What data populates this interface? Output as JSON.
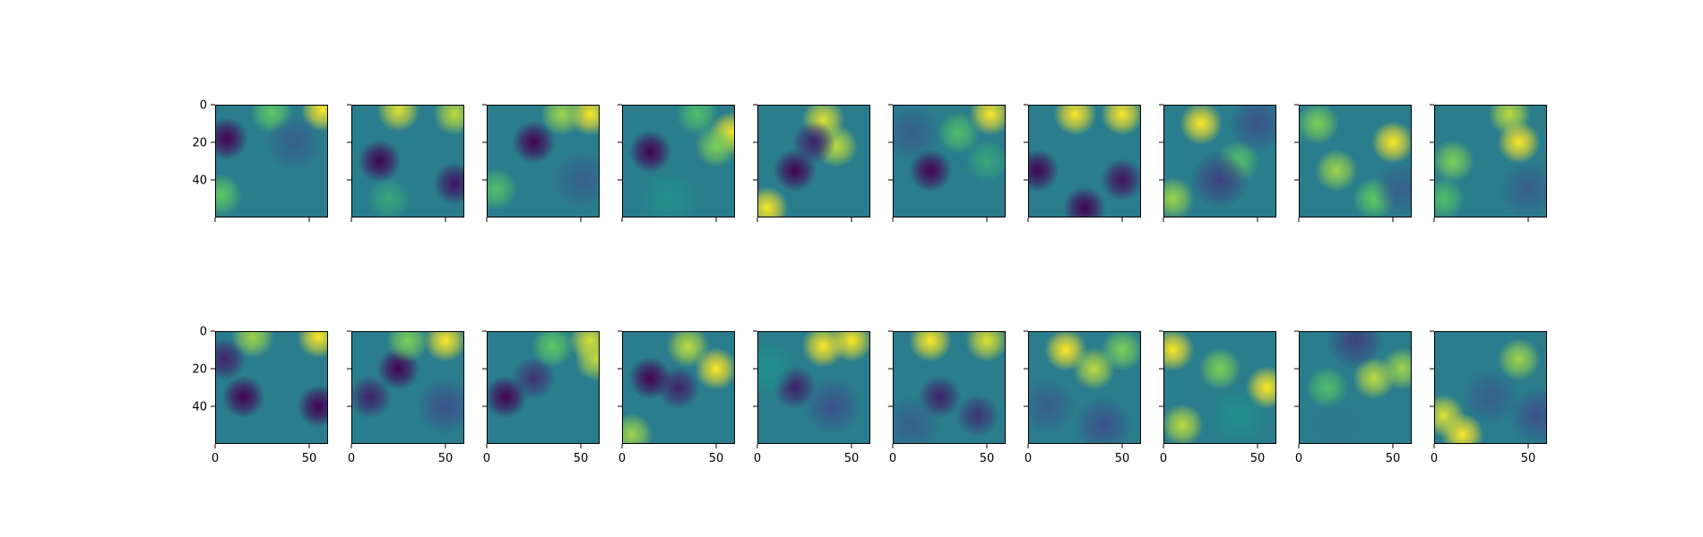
{
  "chart_data": {
    "type": "heatmap",
    "title": "",
    "colormap": "viridis",
    "colormap_stops": [
      "#440154",
      "#3b528b",
      "#21918c",
      "#5ec962",
      "#fde725"
    ],
    "grid": false,
    "legend": "none",
    "layout": {
      "rows": 2,
      "cols": 10
    },
    "shared_axes": true,
    "image_shape": [
      60,
      60
    ],
    "xlim": [
      0,
      60
    ],
    "ylim": [
      60,
      0
    ],
    "x_ticks": [
      0,
      50
    ],
    "y_ticks": [
      0,
      20,
      40
    ],
    "x_tick_labels": [
      "0",
      "50"
    ],
    "y_tick_labels": [
      "0",
      "20",
      "40"
    ],
    "panels": [
      {
        "row": 0,
        "col": 0,
        "blobs": [
          {
            "x": 6,
            "y": 18,
            "v": 0.0
          },
          {
            "x": 57,
            "y": 3,
            "v": 1.0
          },
          {
            "x": 30,
            "y": 4,
            "v": 0.75
          },
          {
            "x": 3,
            "y": 48,
            "v": 0.75
          },
          {
            "x": 42,
            "y": 20,
            "v": 0.3
          }
        ]
      },
      {
        "row": 0,
        "col": 1,
        "blobs": [
          {
            "x": 15,
            "y": 30,
            "v": 0.0
          },
          {
            "x": 55,
            "y": 42,
            "v": 0.05
          },
          {
            "x": 25,
            "y": 3,
            "v": 0.95
          },
          {
            "x": 55,
            "y": 5,
            "v": 0.9
          },
          {
            "x": 20,
            "y": 50,
            "v": 0.6
          }
        ]
      },
      {
        "row": 0,
        "col": 2,
        "blobs": [
          {
            "x": 25,
            "y": 20,
            "v": 0.0
          },
          {
            "x": 55,
            "y": 5,
            "v": 1.0
          },
          {
            "x": 40,
            "y": 5,
            "v": 0.85
          },
          {
            "x": 5,
            "y": 45,
            "v": 0.7
          },
          {
            "x": 50,
            "y": 40,
            "v": 0.3
          }
        ]
      },
      {
        "row": 0,
        "col": 3,
        "blobs": [
          {
            "x": 15,
            "y": 25,
            "v": 0.0
          },
          {
            "x": 58,
            "y": 15,
            "v": 1.0
          },
          {
            "x": 50,
            "y": 22,
            "v": 0.8
          },
          {
            "x": 40,
            "y": 5,
            "v": 0.7
          },
          {
            "x": 25,
            "y": 50,
            "v": 0.5
          }
        ]
      },
      {
        "row": 0,
        "col": 4,
        "blobs": [
          {
            "x": 5,
            "y": 55,
            "v": 1.0
          },
          {
            "x": 35,
            "y": 8,
            "v": 0.95
          },
          {
            "x": 42,
            "y": 22,
            "v": 0.9
          },
          {
            "x": 20,
            "y": 35,
            "v": 0.0
          },
          {
            "x": 30,
            "y": 20,
            "v": 0.1
          }
        ]
      },
      {
        "row": 0,
        "col": 5,
        "blobs": [
          {
            "x": 20,
            "y": 35,
            "v": 0.0
          },
          {
            "x": 52,
            "y": 5,
            "v": 1.0
          },
          {
            "x": 50,
            "y": 30,
            "v": 0.6
          },
          {
            "x": 35,
            "y": 15,
            "v": 0.7
          },
          {
            "x": 10,
            "y": 15,
            "v": 0.3
          }
        ]
      },
      {
        "row": 0,
        "col": 6,
        "blobs": [
          {
            "x": 25,
            "y": 5,
            "v": 1.0
          },
          {
            "x": 50,
            "y": 5,
            "v": 1.0
          },
          {
            "x": 5,
            "y": 35,
            "v": 0.0
          },
          {
            "x": 30,
            "y": 55,
            "v": 0.0
          },
          {
            "x": 50,
            "y": 40,
            "v": 0.05
          }
        ]
      },
      {
        "row": 0,
        "col": 7,
        "blobs": [
          {
            "x": 20,
            "y": 10,
            "v": 1.0
          },
          {
            "x": 5,
            "y": 50,
            "v": 0.85
          },
          {
            "x": 40,
            "y": 30,
            "v": 0.7
          },
          {
            "x": 30,
            "y": 40,
            "v": 0.2
          },
          {
            "x": 50,
            "y": 10,
            "v": 0.25
          }
        ]
      },
      {
        "row": 0,
        "col": 8,
        "blobs": [
          {
            "x": 50,
            "y": 20,
            "v": 1.0
          },
          {
            "x": 20,
            "y": 35,
            "v": 0.85
          },
          {
            "x": 10,
            "y": 10,
            "v": 0.8
          },
          {
            "x": 40,
            "y": 50,
            "v": 0.75
          },
          {
            "x": 55,
            "y": 45,
            "v": 0.3
          }
        ]
      },
      {
        "row": 0,
        "col": 9,
        "blobs": [
          {
            "x": 45,
            "y": 20,
            "v": 1.0
          },
          {
            "x": 40,
            "y": 5,
            "v": 0.9
          },
          {
            "x": 10,
            "y": 30,
            "v": 0.8
          },
          {
            "x": 5,
            "y": 50,
            "v": 0.7
          },
          {
            "x": 50,
            "y": 45,
            "v": 0.3
          }
        ]
      },
      {
        "row": 1,
        "col": 0,
        "blobs": [
          {
            "x": 15,
            "y": 35,
            "v": 0.0
          },
          {
            "x": 55,
            "y": 40,
            "v": 0.0
          },
          {
            "x": 55,
            "y": 3,
            "v": 1.0
          },
          {
            "x": 20,
            "y": 3,
            "v": 0.85
          },
          {
            "x": 5,
            "y": 15,
            "v": 0.1
          }
        ]
      },
      {
        "row": 1,
        "col": 1,
        "blobs": [
          {
            "x": 25,
            "y": 20,
            "v": 0.0
          },
          {
            "x": 10,
            "y": 35,
            "v": 0.1
          },
          {
            "x": 50,
            "y": 5,
            "v": 1.0
          },
          {
            "x": 30,
            "y": 5,
            "v": 0.8
          },
          {
            "x": 50,
            "y": 40,
            "v": 0.25
          }
        ]
      },
      {
        "row": 1,
        "col": 2,
        "blobs": [
          {
            "x": 10,
            "y": 35,
            "v": 0.0
          },
          {
            "x": 25,
            "y": 25,
            "v": 0.15
          },
          {
            "x": 55,
            "y": 5,
            "v": 0.95
          },
          {
            "x": 58,
            "y": 15,
            "v": 0.9
          },
          {
            "x": 35,
            "y": 8,
            "v": 0.75
          }
        ]
      },
      {
        "row": 1,
        "col": 3,
        "blobs": [
          {
            "x": 15,
            "y": 25,
            "v": 0.0
          },
          {
            "x": 30,
            "y": 30,
            "v": 0.1
          },
          {
            "x": 50,
            "y": 20,
            "v": 1.0
          },
          {
            "x": 35,
            "y": 8,
            "v": 0.9
          },
          {
            "x": 5,
            "y": 55,
            "v": 0.85
          }
        ]
      },
      {
        "row": 1,
        "col": 4,
        "blobs": [
          {
            "x": 35,
            "y": 8,
            "v": 1.0
          },
          {
            "x": 50,
            "y": 5,
            "v": 1.0
          },
          {
            "x": 20,
            "y": 30,
            "v": 0.1
          },
          {
            "x": 40,
            "y": 40,
            "v": 0.25
          },
          {
            "x": 5,
            "y": 20,
            "v": 0.5
          }
        ]
      },
      {
        "row": 1,
        "col": 5,
        "blobs": [
          {
            "x": 20,
            "y": 5,
            "v": 1.0
          },
          {
            "x": 50,
            "y": 5,
            "v": 0.95
          },
          {
            "x": 25,
            "y": 35,
            "v": 0.1
          },
          {
            "x": 45,
            "y": 45,
            "v": 0.15
          },
          {
            "x": 10,
            "y": 50,
            "v": 0.3
          }
        ]
      },
      {
        "row": 1,
        "col": 6,
        "blobs": [
          {
            "x": 20,
            "y": 10,
            "v": 1.0
          },
          {
            "x": 35,
            "y": 20,
            "v": 0.9
          },
          {
            "x": 50,
            "y": 10,
            "v": 0.8
          },
          {
            "x": 10,
            "y": 40,
            "v": 0.3
          },
          {
            "x": 40,
            "y": 50,
            "v": 0.25
          }
        ]
      },
      {
        "row": 1,
        "col": 7,
        "blobs": [
          {
            "x": 5,
            "y": 10,
            "v": 1.0
          },
          {
            "x": 55,
            "y": 30,
            "v": 1.0
          },
          {
            "x": 10,
            "y": 50,
            "v": 0.9
          },
          {
            "x": 30,
            "y": 20,
            "v": 0.8
          },
          {
            "x": 40,
            "y": 45,
            "v": 0.5
          }
        ]
      },
      {
        "row": 1,
        "col": 8,
        "blobs": [
          {
            "x": 40,
            "y": 25,
            "v": 0.9
          },
          {
            "x": 55,
            "y": 20,
            "v": 0.85
          },
          {
            "x": 15,
            "y": 30,
            "v": 0.7
          },
          {
            "x": 30,
            "y": 5,
            "v": 0.2
          },
          {
            "x": 20,
            "y": 50,
            "v": 0.4
          }
        ]
      },
      {
        "row": 1,
        "col": 9,
        "blobs": [
          {
            "x": 15,
            "y": 55,
            "v": 1.0
          },
          {
            "x": 5,
            "y": 45,
            "v": 0.95
          },
          {
            "x": 45,
            "y": 15,
            "v": 0.85
          },
          {
            "x": 30,
            "y": 35,
            "v": 0.3
          },
          {
            "x": 55,
            "y": 45,
            "v": 0.25
          }
        ]
      }
    ]
  }
}
